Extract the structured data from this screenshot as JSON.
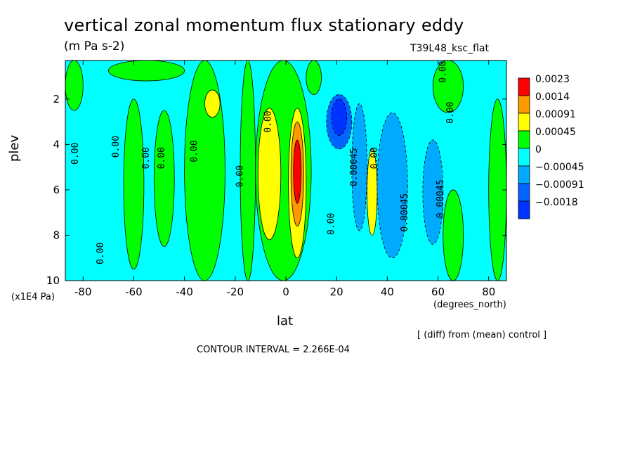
{
  "chart_data": {
    "type": "heatmap",
    "title": "vertical zonal momentum flux stationary eddy",
    "units": "(m Pa s-2)",
    "run_label": "T39L48_ksc_flat",
    "xlabel": "lat",
    "x_units": "(degrees_north)",
    "ylabel": "plev",
    "y_units": "(x1E4 Pa)",
    "xlim": [
      -87,
      87
    ],
    "ylim": [
      10,
      0.3
    ],
    "x_ticks": [
      "-80",
      "-60",
      "-40",
      "-20",
      "0",
      "20",
      "40",
      "60",
      "80"
    ],
    "x_tick_values": [
      -80,
      -60,
      -40,
      -20,
      0,
      20,
      40,
      60,
      80
    ],
    "y_ticks": [
      "2",
      "4",
      "6",
      "8",
      "10"
    ],
    "y_tick_values": [
      2,
      4,
      6,
      8,
      10
    ],
    "note": "[ (diff) from (mean) control ]",
    "contour_interval": "CONTOUR INTERVAL = 2.266E-04",
    "legend": [
      {
        "label": "0.0023",
        "color": "#ff0000"
      },
      {
        "label": "0.0014",
        "color": "#ff9900"
      },
      {
        "label": "0.00091",
        "color": "#ffff00"
      },
      {
        "label": "0.00045",
        "color": "#00ff00"
      },
      {
        "label": "0",
        "color": "#00ffff"
      },
      {
        "label": "−0.00045",
        "color": "#00aaff"
      },
      {
        "label": "−0.00091",
        "color": "#0066ff"
      },
      {
        "label": "−0.0018",
        "color": "#0033ff"
      }
    ],
    "contour_labels": [
      {
        "text": "0.00",
        "lat": -82,
        "p": 4.4
      },
      {
        "text": "0.00",
        "lat": -66,
        "p": 4.1
      },
      {
        "text": "0.00",
        "lat": -54,
        "p": 4.6
      },
      {
        "text": "0.00",
        "lat": -48,
        "p": 4.6
      },
      {
        "text": "0.00",
        "lat": -35,
        "p": 4.3
      },
      {
        "text": "0.00",
        "lat": -17,
        "p": 5.4
      },
      {
        "text": "0.00",
        "lat": -6,
        "p": 3.0
      },
      {
        "text": "0.00",
        "lat": 19,
        "p": 7.5
      },
      {
        "text": "0.00045",
        "lat": 28,
        "p": 5.0
      },
      {
        "text": "0.00",
        "lat": 36,
        "p": 4.6
      },
      {
        "text": "0.00045",
        "lat": 48,
        "p": 7.0
      },
      {
        "text": "0.00045",
        "lat": 62,
        "p": 6.4
      },
      {
        "text": "0.00",
        "lat": 66,
        "p": 2.6
      },
      {
        "text": "0.00",
        "lat": 63,
        "p": 0.8
      },
      {
        "text": "0.00",
        "lat": -72,
        "p": 8.8
      }
    ],
    "field_bands": [
      {
        "lat_min": -87,
        "lat_max": 87,
        "p_top": 0.3,
        "p_bot": 10,
        "level": 4
      },
      {
        "lat_min": -87,
        "lat_max": -80,
        "p_top": 0.3,
        "p_bot": 2.5,
        "level": 3
      },
      {
        "lat_min": -70,
        "lat_max": -40,
        "p_top": 0.3,
        "p_bot": 1.2,
        "level": 3
      },
      {
        "lat_min": -64,
        "lat_max": -56,
        "p_top": 2.0,
        "p_bot": 9.5,
        "level": 3
      },
      {
        "lat_min": -52,
        "lat_max": -44,
        "p_top": 2.5,
        "p_bot": 8.5,
        "level": 3
      },
      {
        "lat_min": -40,
        "lat_max": -24,
        "p_top": 0.3,
        "p_bot": 10,
        "level": 3
      },
      {
        "lat_min": -32,
        "lat_max": -26,
        "p_top": 1.6,
        "p_bot": 2.8,
        "level": 2
      },
      {
        "lat_min": -18,
        "lat_max": -12,
        "p_top": 0.3,
        "p_bot": 10,
        "level": 3
      },
      {
        "lat_min": -12,
        "lat_max": 10,
        "p_top": 0.3,
        "p_bot": 10,
        "level": 3
      },
      {
        "lat_min": -11,
        "lat_max": -2,
        "p_top": 2.4,
        "p_bot": 8.2,
        "level": 2
      },
      {
        "lat_min": 1,
        "lat_max": 8,
        "p_top": 2.4,
        "p_bot": 9.0,
        "level": 2
      },
      {
        "lat_min": 2,
        "lat_max": 7,
        "p_top": 3.0,
        "p_bot": 7.6,
        "level": 1
      },
      {
        "lat_min": 3,
        "lat_max": 6,
        "p_top": 3.8,
        "p_bot": 6.6,
        "level": 0
      },
      {
        "lat_min": 8,
        "lat_max": 14,
        "p_top": 0.3,
        "p_bot": 1.8,
        "level": 3
      },
      {
        "lat_min": 16,
        "lat_max": 26,
        "p_top": 1.8,
        "p_bot": 4.2,
        "level": 6
      },
      {
        "lat_min": 18,
        "lat_max": 24,
        "p_top": 2.0,
        "p_bot": 3.6,
        "level": 7
      },
      {
        "lat_min": 26,
        "lat_max": 32,
        "p_top": 2.2,
        "p_bot": 7.8,
        "level": 5
      },
      {
        "lat_min": 32,
        "lat_max": 36,
        "p_top": 4.2,
        "p_bot": 8.0,
        "level": 2
      },
      {
        "lat_min": 36,
        "lat_max": 48,
        "p_top": 2.6,
        "p_bot": 9.0,
        "level": 5
      },
      {
        "lat_min": 54,
        "lat_max": 62,
        "p_top": 3.8,
        "p_bot": 8.4,
        "level": 5
      },
      {
        "lat_min": 58,
        "lat_max": 70,
        "p_top": 0.3,
        "p_bot": 2.6,
        "level": 3
      },
      {
        "lat_min": 62,
        "lat_max": 70,
        "p_top": 6.0,
        "p_bot": 10,
        "level": 3
      },
      {
        "lat_min": 80,
        "lat_max": 87,
        "p_top": 2.0,
        "p_bot": 10,
        "level": 3
      }
    ]
  }
}
